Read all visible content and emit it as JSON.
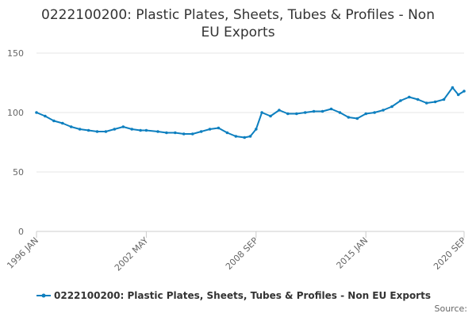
{
  "chart_data": {
    "type": "line",
    "title_line1": "0222100200: Plastic Plates, Sheets, Tubes & Profiles - Non",
    "title_line2": "EU Exports",
    "xlabel": "",
    "ylabel": "",
    "ylim": [
      0,
      150
    ],
    "yticks": [
      0,
      50,
      100,
      150
    ],
    "xticks": [
      "1996 JAN",
      "2002 MAY",
      "2008 SEP",
      "2015 JAN",
      "2020 SEP"
    ],
    "grid": true,
    "legend_position": "bottom",
    "series": [
      {
        "name": "0222100200: Plastic Plates, Sheets, Tubes & Profiles - Non EU Exports",
        "color": "#0d7fbf",
        "x": [
          "1996 JAN",
          "1996 JUL",
          "1997 JAN",
          "1997 JUL",
          "1998 JAN",
          "1998 JUL",
          "1999 JAN",
          "1999 JUL",
          "2000 JAN",
          "2000 JUL",
          "2001 JAN",
          "2001 JUL",
          "2002 JAN",
          "2002 MAY",
          "2003 JAN",
          "2003 JUL",
          "2004 JAN",
          "2004 JUL",
          "2005 JAN",
          "2005 JUL",
          "2006 JAN",
          "2006 JUL",
          "2007 JAN",
          "2007 JUL",
          "2008 JAN",
          "2008 MAY",
          "2008 SEP",
          "2009 JAN",
          "2009 JUL",
          "2010 JAN",
          "2010 JUL",
          "2011 JAN",
          "2011 JUL",
          "2012 JAN",
          "2012 JUL",
          "2013 JAN",
          "2013 JUL",
          "2014 JAN",
          "2014 JUL",
          "2015 JAN",
          "2015 JUL",
          "2016 JAN",
          "2016 JUL",
          "2017 JAN",
          "2017 JUL",
          "2018 JAN",
          "2018 JUL",
          "2019 JAN",
          "2019 JUL",
          "2020 JAN",
          "2020 MAY",
          "2020 SEP"
        ],
        "values": [
          100,
          97,
          93,
          91,
          88,
          86,
          85,
          84,
          84,
          86,
          88,
          86,
          85,
          85,
          84,
          83,
          83,
          82,
          82,
          84,
          86,
          87,
          83,
          80,
          79,
          80,
          86,
          100,
          97,
          102,
          99,
          99,
          100,
          101,
          101,
          103,
          100,
          96,
          95,
          99,
          100,
          102,
          105,
          110,
          113,
          111,
          108,
          109,
          111,
          121,
          115,
          118
        ]
      }
    ]
  },
  "legend": {
    "label": "0222100200: Plastic Plates, Sheets, Tubes & Profiles - Non EU Exports"
  },
  "footer": {
    "source_label": "Source:"
  }
}
